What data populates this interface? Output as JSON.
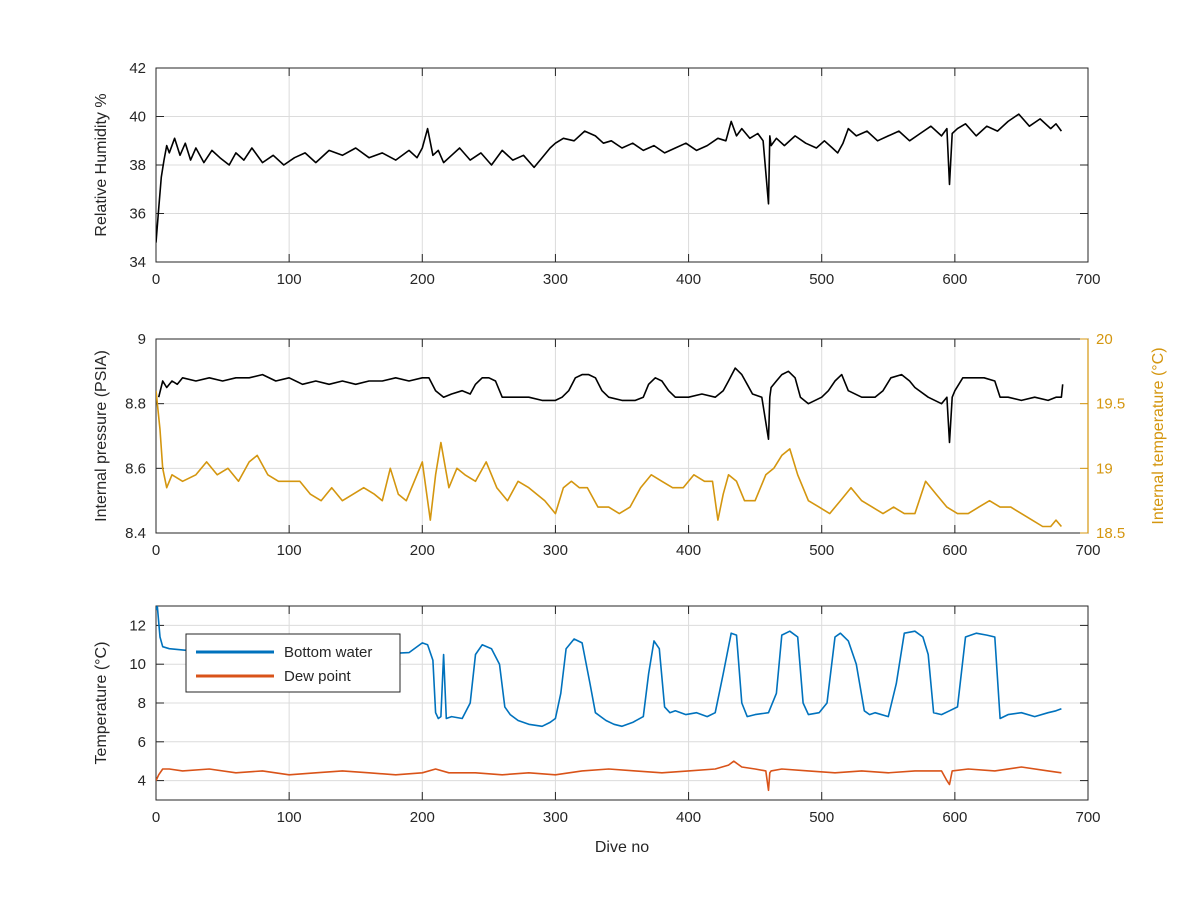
{
  "chart_data": [
    {
      "type": "line",
      "xlabel": "",
      "ylabel": "Relative Humidity %",
      "xlim": [
        0,
        700
      ],
      "ylim": [
        34,
        42
      ],
      "xticks": [
        0,
        100,
        200,
        300,
        400,
        500,
        600,
        700
      ],
      "yticks": [
        34,
        36,
        38,
        40,
        42
      ],
      "grid": true,
      "series": [
        {
          "color": "#000000",
          "x": [
            0,
            2,
            4,
            6,
            8,
            10,
            14,
            18,
            22,
            26,
            30,
            36,
            42,
            48,
            55,
            60,
            66,
            72,
            80,
            88,
            96,
            104,
            112,
            120,
            130,
            140,
            150,
            160,
            170,
            180,
            190,
            196,
            200,
            204,
            208,
            212,
            216,
            222,
            228,
            236,
            244,
            252,
            260,
            268,
            276,
            284,
            290,
            296,
            300,
            306,
            314,
            322,
            330,
            336,
            342,
            350,
            358,
            366,
            374,
            382,
            390,
            398,
            406,
            414,
            422,
            428,
            432,
            436,
            440,
            446,
            452,
            456,
            460,
            461,
            462,
            466,
            472,
            480,
            488,
            496,
            502,
            508,
            512,
            516,
            520,
            526,
            534,
            542,
            550,
            558,
            566,
            574,
            582,
            590,
            594,
            596,
            598,
            602,
            608,
            616,
            624,
            632,
            640,
            648,
            656,
            664,
            672,
            676,
            680
          ],
          "y": [
            34.8,
            36.2,
            37.5,
            38.2,
            38.8,
            38.5,
            39.1,
            38.4,
            38.9,
            38.2,
            38.7,
            38.1,
            38.6,
            38.3,
            38.0,
            38.5,
            38.2,
            38.7,
            38.1,
            38.4,
            38.0,
            38.3,
            38.5,
            38.1,
            38.6,
            38.4,
            38.7,
            38.3,
            38.5,
            38.2,
            38.6,
            38.3,
            38.7,
            39.5,
            38.4,
            38.6,
            38.1,
            38.4,
            38.7,
            38.2,
            38.5,
            38.0,
            38.6,
            38.2,
            38.4,
            37.9,
            38.3,
            38.7,
            38.9,
            39.1,
            39.0,
            39.4,
            39.2,
            38.9,
            39.0,
            38.7,
            38.9,
            38.6,
            38.8,
            38.5,
            38.7,
            38.9,
            38.6,
            38.8,
            39.1,
            39.0,
            39.8,
            39.2,
            39.5,
            39.1,
            39.3,
            39.0,
            36.4,
            39.2,
            38.8,
            39.1,
            38.8,
            39.2,
            38.9,
            38.7,
            39.0,
            38.7,
            38.5,
            38.9,
            39.5,
            39.2,
            39.4,
            39.0,
            39.2,
            39.4,
            39.0,
            39.3,
            39.6,
            39.2,
            39.5,
            37.2,
            39.3,
            39.5,
            39.7,
            39.2,
            39.6,
            39.4,
            39.8,
            40.1,
            39.6,
            39.9,
            39.5,
            39.7,
            39.4
          ]
        }
      ]
    },
    {
      "type": "line",
      "xlabel": "",
      "ylabel": "Internal pressure (PSIA)",
      "y2label": "Internal temperature (°C)",
      "xlim": [
        0,
        700
      ],
      "ylim": [
        8.4,
        9
      ],
      "y2lim": [
        18.5,
        20
      ],
      "xticks": [
        0,
        100,
        200,
        300,
        400,
        500,
        600,
        700
      ],
      "yticks": [
        8.4,
        8.6,
        8.8,
        9
      ],
      "yticklabels": [
        "8.4",
        "8.6",
        "8.8",
        "9"
      ],
      "y2ticks": [
        18.5,
        19,
        19.5,
        20
      ],
      "y2ticklabels": [
        "18.5",
        "19",
        "19.5",
        "20"
      ],
      "grid": true,
      "series": [
        {
          "axis": "left",
          "color": "#000000",
          "x": [
            2,
            5,
            8,
            12,
            16,
            20,
            30,
            40,
            50,
            60,
            70,
            80,
            90,
            100,
            110,
            120,
            130,
            140,
            150,
            160,
            170,
            180,
            190,
            200,
            205,
            210,
            216,
            222,
            230,
            236,
            240,
            245,
            250,
            255,
            260,
            265,
            270,
            280,
            290,
            300,
            305,
            310,
            315,
            320,
            325,
            330,
            335,
            340,
            350,
            360,
            366,
            370,
            375,
            380,
            385,
            390,
            400,
            410,
            420,
            426,
            430,
            435,
            440,
            444,
            448,
            455,
            460,
            461,
            462,
            466,
            470,
            475,
            480,
            484,
            490,
            500,
            505,
            510,
            515,
            520,
            530,
            540,
            546,
            552,
            560,
            566,
            570,
            580,
            590,
            594,
            596,
            598,
            600,
            606,
            614,
            622,
            630,
            634,
            640,
            650,
            660,
            670,
            676,
            680,
            681
          ],
          "y": [
            8.82,
            8.87,
            8.85,
            8.87,
            8.86,
            8.88,
            8.87,
            8.88,
            8.87,
            8.88,
            8.88,
            8.89,
            8.87,
            8.88,
            8.86,
            8.87,
            8.86,
            8.87,
            8.86,
            8.87,
            8.87,
            8.88,
            8.87,
            8.88,
            8.88,
            8.84,
            8.82,
            8.83,
            8.84,
            8.83,
            8.86,
            8.88,
            8.88,
            8.87,
            8.82,
            8.82,
            8.82,
            8.82,
            8.81,
            8.81,
            8.82,
            8.84,
            8.88,
            8.89,
            8.89,
            8.88,
            8.84,
            8.82,
            8.81,
            8.81,
            8.82,
            8.86,
            8.88,
            8.87,
            8.84,
            8.82,
            8.82,
            8.83,
            8.82,
            8.84,
            8.87,
            8.91,
            8.89,
            8.86,
            8.83,
            8.82,
            8.69,
            8.82,
            8.85,
            8.87,
            8.89,
            8.9,
            8.88,
            8.82,
            8.8,
            8.82,
            8.84,
            8.87,
            8.89,
            8.84,
            8.82,
            8.82,
            8.84,
            8.88,
            8.89,
            8.87,
            8.85,
            8.82,
            8.8,
            8.82,
            8.68,
            8.82,
            8.84,
            8.88,
            8.88,
            8.88,
            8.87,
            8.82,
            8.82,
            8.81,
            8.82,
            8.81,
            8.82,
            8.82,
            8.86
          ]
        },
        {
          "axis": "right",
          "color": "#D4960F",
          "x": [
            0,
            3,
            5,
            8,
            12,
            20,
            30,
            38,
            46,
            54,
            62,
            70,
            76,
            84,
            92,
            100,
            108,
            116,
            124,
            132,
            140,
            148,
            156,
            164,
            170,
            176,
            182,
            188,
            194,
            200,
            206,
            210,
            214,
            220,
            226,
            232,
            240,
            248,
            256,
            264,
            272,
            280,
            286,
            292,
            300,
            306,
            312,
            318,
            324,
            332,
            340,
            348,
            356,
            364,
            372,
            380,
            388,
            396,
            404,
            412,
            418,
            422,
            426,
            430,
            436,
            442,
            450,
            458,
            464,
            470,
            476,
            482,
            490,
            498,
            506,
            514,
            522,
            530,
            538,
            546,
            554,
            562,
            570,
            578,
            586,
            594,
            602,
            610,
            618,
            626,
            634,
            642,
            650,
            658,
            666,
            672,
            676,
            680
          ],
          "y": [
            19.6,
            19.3,
            19.0,
            18.85,
            18.95,
            18.9,
            18.95,
            19.05,
            18.95,
            19.0,
            18.9,
            19.05,
            19.1,
            18.95,
            18.9,
            18.9,
            18.9,
            18.8,
            18.75,
            18.85,
            18.75,
            18.8,
            18.85,
            18.8,
            18.75,
            19.0,
            18.8,
            18.75,
            18.9,
            19.05,
            18.6,
            18.95,
            19.2,
            18.85,
            19.0,
            18.95,
            18.9,
            19.05,
            18.85,
            18.75,
            18.9,
            18.85,
            18.8,
            18.75,
            18.65,
            18.85,
            18.9,
            18.85,
            18.85,
            18.7,
            18.7,
            18.65,
            18.7,
            18.85,
            18.95,
            18.9,
            18.85,
            18.85,
            18.95,
            18.9,
            18.9,
            18.6,
            18.8,
            18.95,
            18.9,
            18.75,
            18.75,
            18.95,
            19.0,
            19.1,
            19.15,
            18.95,
            18.75,
            18.7,
            18.65,
            18.75,
            18.85,
            18.75,
            18.7,
            18.65,
            18.7,
            18.65,
            18.65,
            18.9,
            18.8,
            18.7,
            18.65,
            18.65,
            18.7,
            18.75,
            18.7,
            18.7,
            18.65,
            18.6,
            18.55,
            18.55,
            18.6,
            18.55
          ]
        }
      ]
    },
    {
      "type": "line",
      "xlabel": "Dive no",
      "ylabel": "Temperature (°C)",
      "xlim": [
        0,
        700
      ],
      "ylim": [
        3,
        13
      ],
      "xticks": [
        0,
        100,
        200,
        300,
        400,
        500,
        600,
        700
      ],
      "yticks": [
        4,
        6,
        8,
        10,
        12
      ],
      "grid": true,
      "legend": {
        "position": "top-left",
        "entries": [
          "Bottom water",
          "Dew point"
        ]
      },
      "series": [
        {
          "name": "Bottom water",
          "color": "#0072BD",
          "x": [
            0,
            1,
            3,
            5,
            10,
            40,
            80,
            120,
            160,
            190,
            200,
            204,
            208,
            210,
            212,
            214,
            216,
            218,
            222,
            230,
            236,
            240,
            245,
            252,
            258,
            262,
            266,
            272,
            280,
            290,
            296,
            300,
            304,
            308,
            314,
            320,
            326,
            330,
            334,
            338,
            344,
            350,
            358,
            366,
            370,
            374,
            378,
            382,
            386,
            390,
            398,
            406,
            414,
            420,
            426,
            432,
            436,
            440,
            444,
            450,
            460,
            466,
            470,
            476,
            482,
            486,
            490,
            498,
            504,
            510,
            514,
            520,
            526,
            532,
            536,
            540,
            550,
            556,
            562,
            570,
            576,
            580,
            584,
            590,
            596,
            602,
            608,
            616,
            624,
            630,
            634,
            640,
            650,
            660,
            670,
            676,
            680
          ],
          "y": [
            12.8,
            13.0,
            11.4,
            10.9,
            10.8,
            10.6,
            10.5,
            10.5,
            10.5,
            10.6,
            11.1,
            11.0,
            10.2,
            7.5,
            7.2,
            7.3,
            10.5,
            7.2,
            7.3,
            7.2,
            8.0,
            10.5,
            11.0,
            10.8,
            10.0,
            7.8,
            7.4,
            7.1,
            6.9,
            6.8,
            7.0,
            7.2,
            8.5,
            10.8,
            11.3,
            11.1,
            9.0,
            7.5,
            7.3,
            7.1,
            6.9,
            6.8,
            7.0,
            7.3,
            9.5,
            11.2,
            10.8,
            7.8,
            7.5,
            7.6,
            7.4,
            7.5,
            7.3,
            7.5,
            9.5,
            11.6,
            11.5,
            8.0,
            7.3,
            7.4,
            7.5,
            8.5,
            11.5,
            11.7,
            11.4,
            8.0,
            7.4,
            7.5,
            8.0,
            11.4,
            11.6,
            11.2,
            10.0,
            7.6,
            7.4,
            7.5,
            7.3,
            9.0,
            11.6,
            11.7,
            11.4,
            10.5,
            7.5,
            7.4,
            7.6,
            7.8,
            11.4,
            11.6,
            11.5,
            11.4,
            7.2,
            7.4,
            7.5,
            7.3,
            7.5,
            7.6,
            7.7
          ]
        },
        {
          "name": "Dew point",
          "color": "#D95319",
          "x": [
            0,
            2,
            5,
            10,
            20,
            40,
            60,
            80,
            100,
            120,
            140,
            160,
            180,
            200,
            210,
            220,
            240,
            260,
            280,
            300,
            320,
            340,
            360,
            380,
            400,
            420,
            430,
            434,
            440,
            450,
            458,
            460,
            461,
            462,
            470,
            490,
            510,
            530,
            550,
            570,
            590,
            594,
            596,
            598,
            610,
            630,
            650,
            670,
            680
          ],
          "y": [
            4.0,
            4.3,
            4.6,
            4.6,
            4.5,
            4.6,
            4.4,
            4.5,
            4.3,
            4.4,
            4.5,
            4.4,
            4.3,
            4.4,
            4.6,
            4.4,
            4.4,
            4.3,
            4.4,
            4.3,
            4.5,
            4.6,
            4.5,
            4.4,
            4.5,
            4.6,
            4.8,
            5.0,
            4.7,
            4.6,
            4.5,
            3.5,
            4.4,
            4.5,
            4.6,
            4.5,
            4.4,
            4.5,
            4.4,
            4.5,
            4.5,
            4.0,
            3.8,
            4.5,
            4.6,
            4.5,
            4.7,
            4.5,
            4.4
          ]
        }
      ]
    }
  ]
}
